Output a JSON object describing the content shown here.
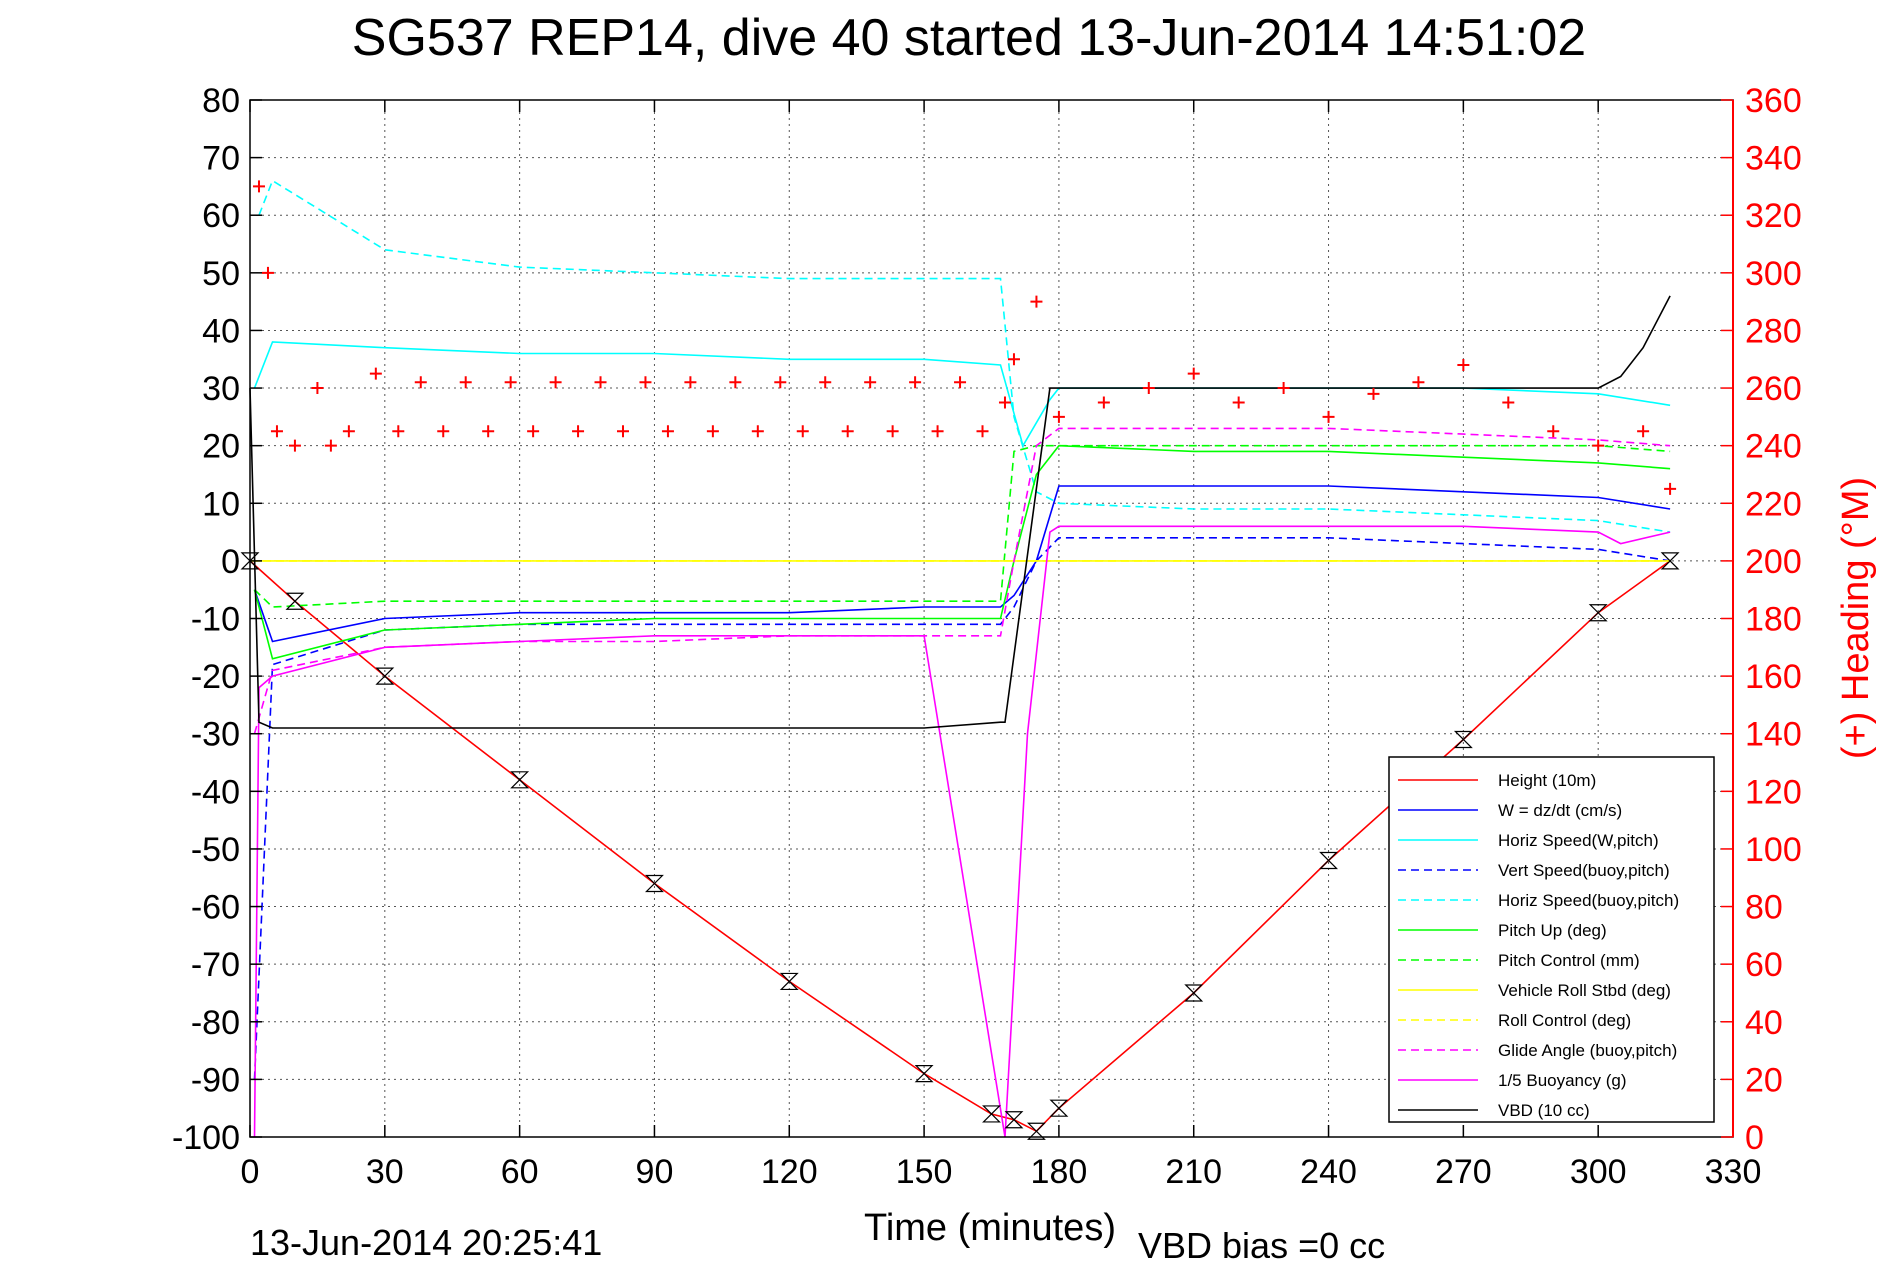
{
  "chart_data": {
    "type": "line",
    "title": "SG537 REP14, dive 40 started 13-Jun-2014 14:51:02",
    "xlabel": "Time (minutes)",
    "ylabel": "",
    "y2label": "(+) Heading (°M)",
    "footer_left": "13-Jun-2014 20:25:41",
    "footer_right": "VBD bias =0 cc",
    "xlim": [
      0,
      330
    ],
    "ylim": [
      -100,
      80
    ],
    "y2lim": [
      0,
      360
    ],
    "xticks": [
      0,
      30,
      60,
      90,
      120,
      150,
      180,
      210,
      240,
      270,
      300,
      330
    ],
    "yticks": [
      80,
      70,
      60,
      50,
      40,
      30,
      20,
      10,
      0,
      -10,
      -20,
      -30,
      -40,
      -50,
      -60,
      -70,
      -80,
      -90,
      -100
    ],
    "y2ticks": [
      360,
      340,
      320,
      300,
      280,
      260,
      240,
      220,
      200,
      180,
      160,
      140,
      120,
      100,
      80,
      60,
      40,
      20,
      0
    ],
    "grid": true,
    "legend_position": "bottom-right",
    "series": [
      {
        "name": "Height (10m)",
        "color": "#ff0000",
        "style": "solid",
        "x": [
          0,
          10,
          30,
          60,
          90,
          120,
          150,
          165,
          170,
          175,
          180,
          210,
          240,
          270,
          300,
          316
        ],
        "y": [
          0,
          -7,
          -20,
          -38,
          -56,
          -73,
          -89,
          -96,
          -97,
          -99,
          -95,
          -75,
          -52,
          -31,
          -9,
          0
        ]
      },
      {
        "name": "W = dz/dt (cm/s)",
        "color": "#0000ff",
        "style": "solid",
        "x": [
          1,
          5,
          30,
          60,
          90,
          120,
          150,
          167,
          170,
          175,
          180,
          210,
          240,
          270,
          300,
          316
        ],
        "y": [
          -5,
          -14,
          -10,
          -9,
          -9,
          -9,
          -8,
          -8,
          -6,
          0,
          13,
          13,
          13,
          12,
          11,
          9
        ]
      },
      {
        "name": "Horiz Speed(W,pitch)",
        "color": "#00ffff",
        "style": "solid",
        "x": [
          1,
          5,
          30,
          60,
          90,
          120,
          150,
          167,
          172,
          178,
          180,
          210,
          240,
          270,
          300,
          316
        ],
        "y": [
          30,
          38,
          37,
          36,
          36,
          35,
          35,
          34,
          20,
          28,
          30,
          30,
          30,
          30,
          29,
          27
        ]
      },
      {
        "name": "Vert Speed(buoy,pitch)",
        "color": "#0000ff",
        "style": "dashed",
        "x": [
          1,
          5,
          30,
          60,
          90,
          120,
          150,
          167,
          170,
          175,
          180,
          210,
          240,
          270,
          300,
          316
        ],
        "y": [
          -90,
          -18,
          -12,
          -11,
          -11,
          -11,
          -11,
          -11,
          -8,
          0,
          4,
          4,
          4,
          3,
          2,
          0
        ]
      },
      {
        "name": "Horiz Speed(buoy,pitch)",
        "color": "#00ffff",
        "style": "dashed",
        "x": [
          2,
          5,
          30,
          60,
          90,
          120,
          150,
          167,
          170,
          175,
          180,
          210,
          240,
          270,
          300,
          316
        ],
        "y": [
          60,
          66,
          54,
          51,
          50,
          49,
          49,
          49,
          25,
          12,
          10,
          9,
          9,
          8,
          7,
          5
        ]
      },
      {
        "name": "Pitch Up (deg)",
        "color": "#00ff00",
        "style": "solid",
        "x": [
          1,
          5,
          30,
          60,
          90,
          120,
          150,
          167,
          170,
          175,
          180,
          210,
          240,
          270,
          300,
          316
        ],
        "y": [
          -5,
          -17,
          -12,
          -11,
          -10,
          -10,
          -10,
          -10,
          0,
          15,
          20,
          19,
          19,
          18,
          17,
          16
        ]
      },
      {
        "name": "Pitch Control (mm)",
        "color": "#00ff00",
        "style": "dashed",
        "x": [
          1,
          5,
          30,
          60,
          90,
          120,
          150,
          167,
          170,
          175,
          180,
          210,
          240,
          270,
          300,
          316
        ],
        "y": [
          -5,
          -8,
          -7,
          -7,
          -7,
          -7,
          -7,
          -7,
          19,
          20,
          20,
          20,
          20,
          20,
          20,
          19
        ]
      },
      {
        "name": "Vehicle Roll Stbd (deg)",
        "color": "#ffff00",
        "style": "solid",
        "x": [
          0,
          10,
          30,
          60,
          90,
          120,
          150,
          168,
          175,
          180,
          210,
          240,
          270,
          300,
          316
        ],
        "y": [
          0,
          0,
          0,
          0,
          0,
          0,
          0,
          0,
          0,
          0,
          0,
          0,
          0,
          0,
          0
        ]
      },
      {
        "name": "Roll Control (deg)",
        "color": "#ffff00",
        "style": "dashed",
        "x": [
          0,
          10,
          30,
          60,
          90,
          120,
          150,
          168,
          175,
          180,
          210,
          240,
          270,
          300,
          316
        ],
        "y": [
          0,
          0,
          0,
          0,
          0,
          0,
          0,
          0,
          0,
          0,
          0,
          0,
          0,
          0,
          0
        ]
      },
      {
        "name": "Glide Angle (buoy,pitch)",
        "color": "#ff00ff",
        "style": "dashed",
        "x": [
          1,
          5,
          30,
          60,
          90,
          120,
          150,
          167,
          170,
          175,
          180,
          210,
          240,
          270,
          300,
          316
        ],
        "y": [
          -30,
          -19,
          -15,
          -14,
          -14,
          -13,
          -13,
          -13,
          0,
          20,
          23,
          23,
          23,
          22,
          21,
          20
        ]
      },
      {
        "name": "1/5 Buoyancy (g)",
        "color": "#ff00ff",
        "style": "solid",
        "x": [
          1,
          2,
          5,
          30,
          60,
          90,
          120,
          150,
          168,
          173,
          178,
          180,
          210,
          240,
          270,
          300,
          305,
          316
        ],
        "y": [
          -100,
          -22,
          -20,
          -15,
          -14,
          -13,
          -13,
          -13,
          -100,
          -30,
          5,
          6,
          6,
          6,
          6,
          5,
          3,
          5
        ]
      },
      {
        "name": "VBD (10 cc)",
        "color": "#000000",
        "style": "solid",
        "x": [
          0,
          2,
          5,
          30,
          60,
          90,
          120,
          150,
          167,
          168,
          178,
          180,
          210,
          240,
          270,
          300,
          305,
          310,
          316
        ],
        "y": [
          30,
          -28,
          -29,
          -29,
          -29,
          -29,
          -29,
          -29,
          -28,
          -28,
          30,
          30,
          30,
          30,
          30,
          30,
          32,
          37,
          46
        ]
      }
    ],
    "heading_series": {
      "name": "(+) Heading",
      "color": "#ff0000",
      "marker": "+",
      "axis": "right",
      "x": [
        2,
        4,
        6,
        10,
        15,
        18,
        22,
        28,
        33,
        38,
        43,
        48,
        53,
        58,
        63,
        68,
        73,
        78,
        83,
        88,
        93,
        98,
        103,
        108,
        113,
        118,
        123,
        128,
        133,
        138,
        143,
        148,
        153,
        158,
        163,
        168,
        170,
        175,
        180,
        190,
        200,
        210,
        220,
        230,
        240,
        250,
        260,
        270,
        280,
        290,
        300,
        310,
        316
      ],
      "y": [
        330,
        300,
        245,
        240,
        260,
        240,
        245,
        265,
        245,
        262,
        245,
        262,
        245,
        262,
        245,
        262,
        245,
        262,
        245,
        262,
        245,
        262,
        245,
        262,
        245,
        262,
        245,
        262,
        245,
        262,
        245,
        262,
        245,
        262,
        245,
        255,
        270,
        290,
        250,
        255,
        260,
        265,
        255,
        260,
        250,
        258,
        262,
        268,
        255,
        245,
        240,
        245,
        225
      ]
    }
  }
}
